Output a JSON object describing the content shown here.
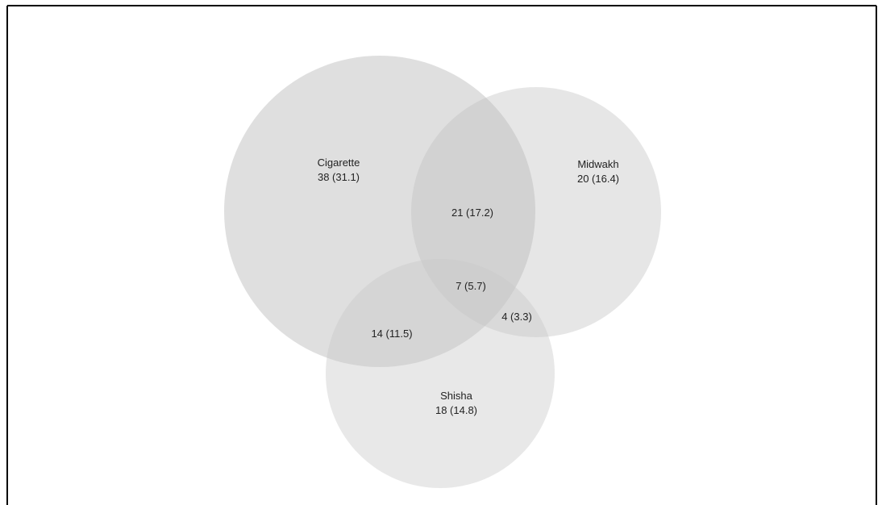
{
  "venn": {
    "sets": [
      {
        "name": "Cigarette",
        "value": "38 (31.1)",
        "color": "#b0b0b0"
      },
      {
        "name": "Midwakh",
        "value": "20 (16.4)",
        "color": "#c4c4c4"
      },
      {
        "name": "Shisha",
        "value": "18 (14.8)",
        "color": "#d6d6d6"
      }
    ],
    "intersections": {
      "cigarette_midwakh": "21 (17.2)",
      "cigarette_shisha": "14 (11.5)",
      "midwakh_shisha": "4 (3.3)",
      "all_three": "7 (5.7)"
    },
    "colors": {
      "border": "#000000",
      "background": "#ffffff",
      "text": "#222222"
    }
  }
}
